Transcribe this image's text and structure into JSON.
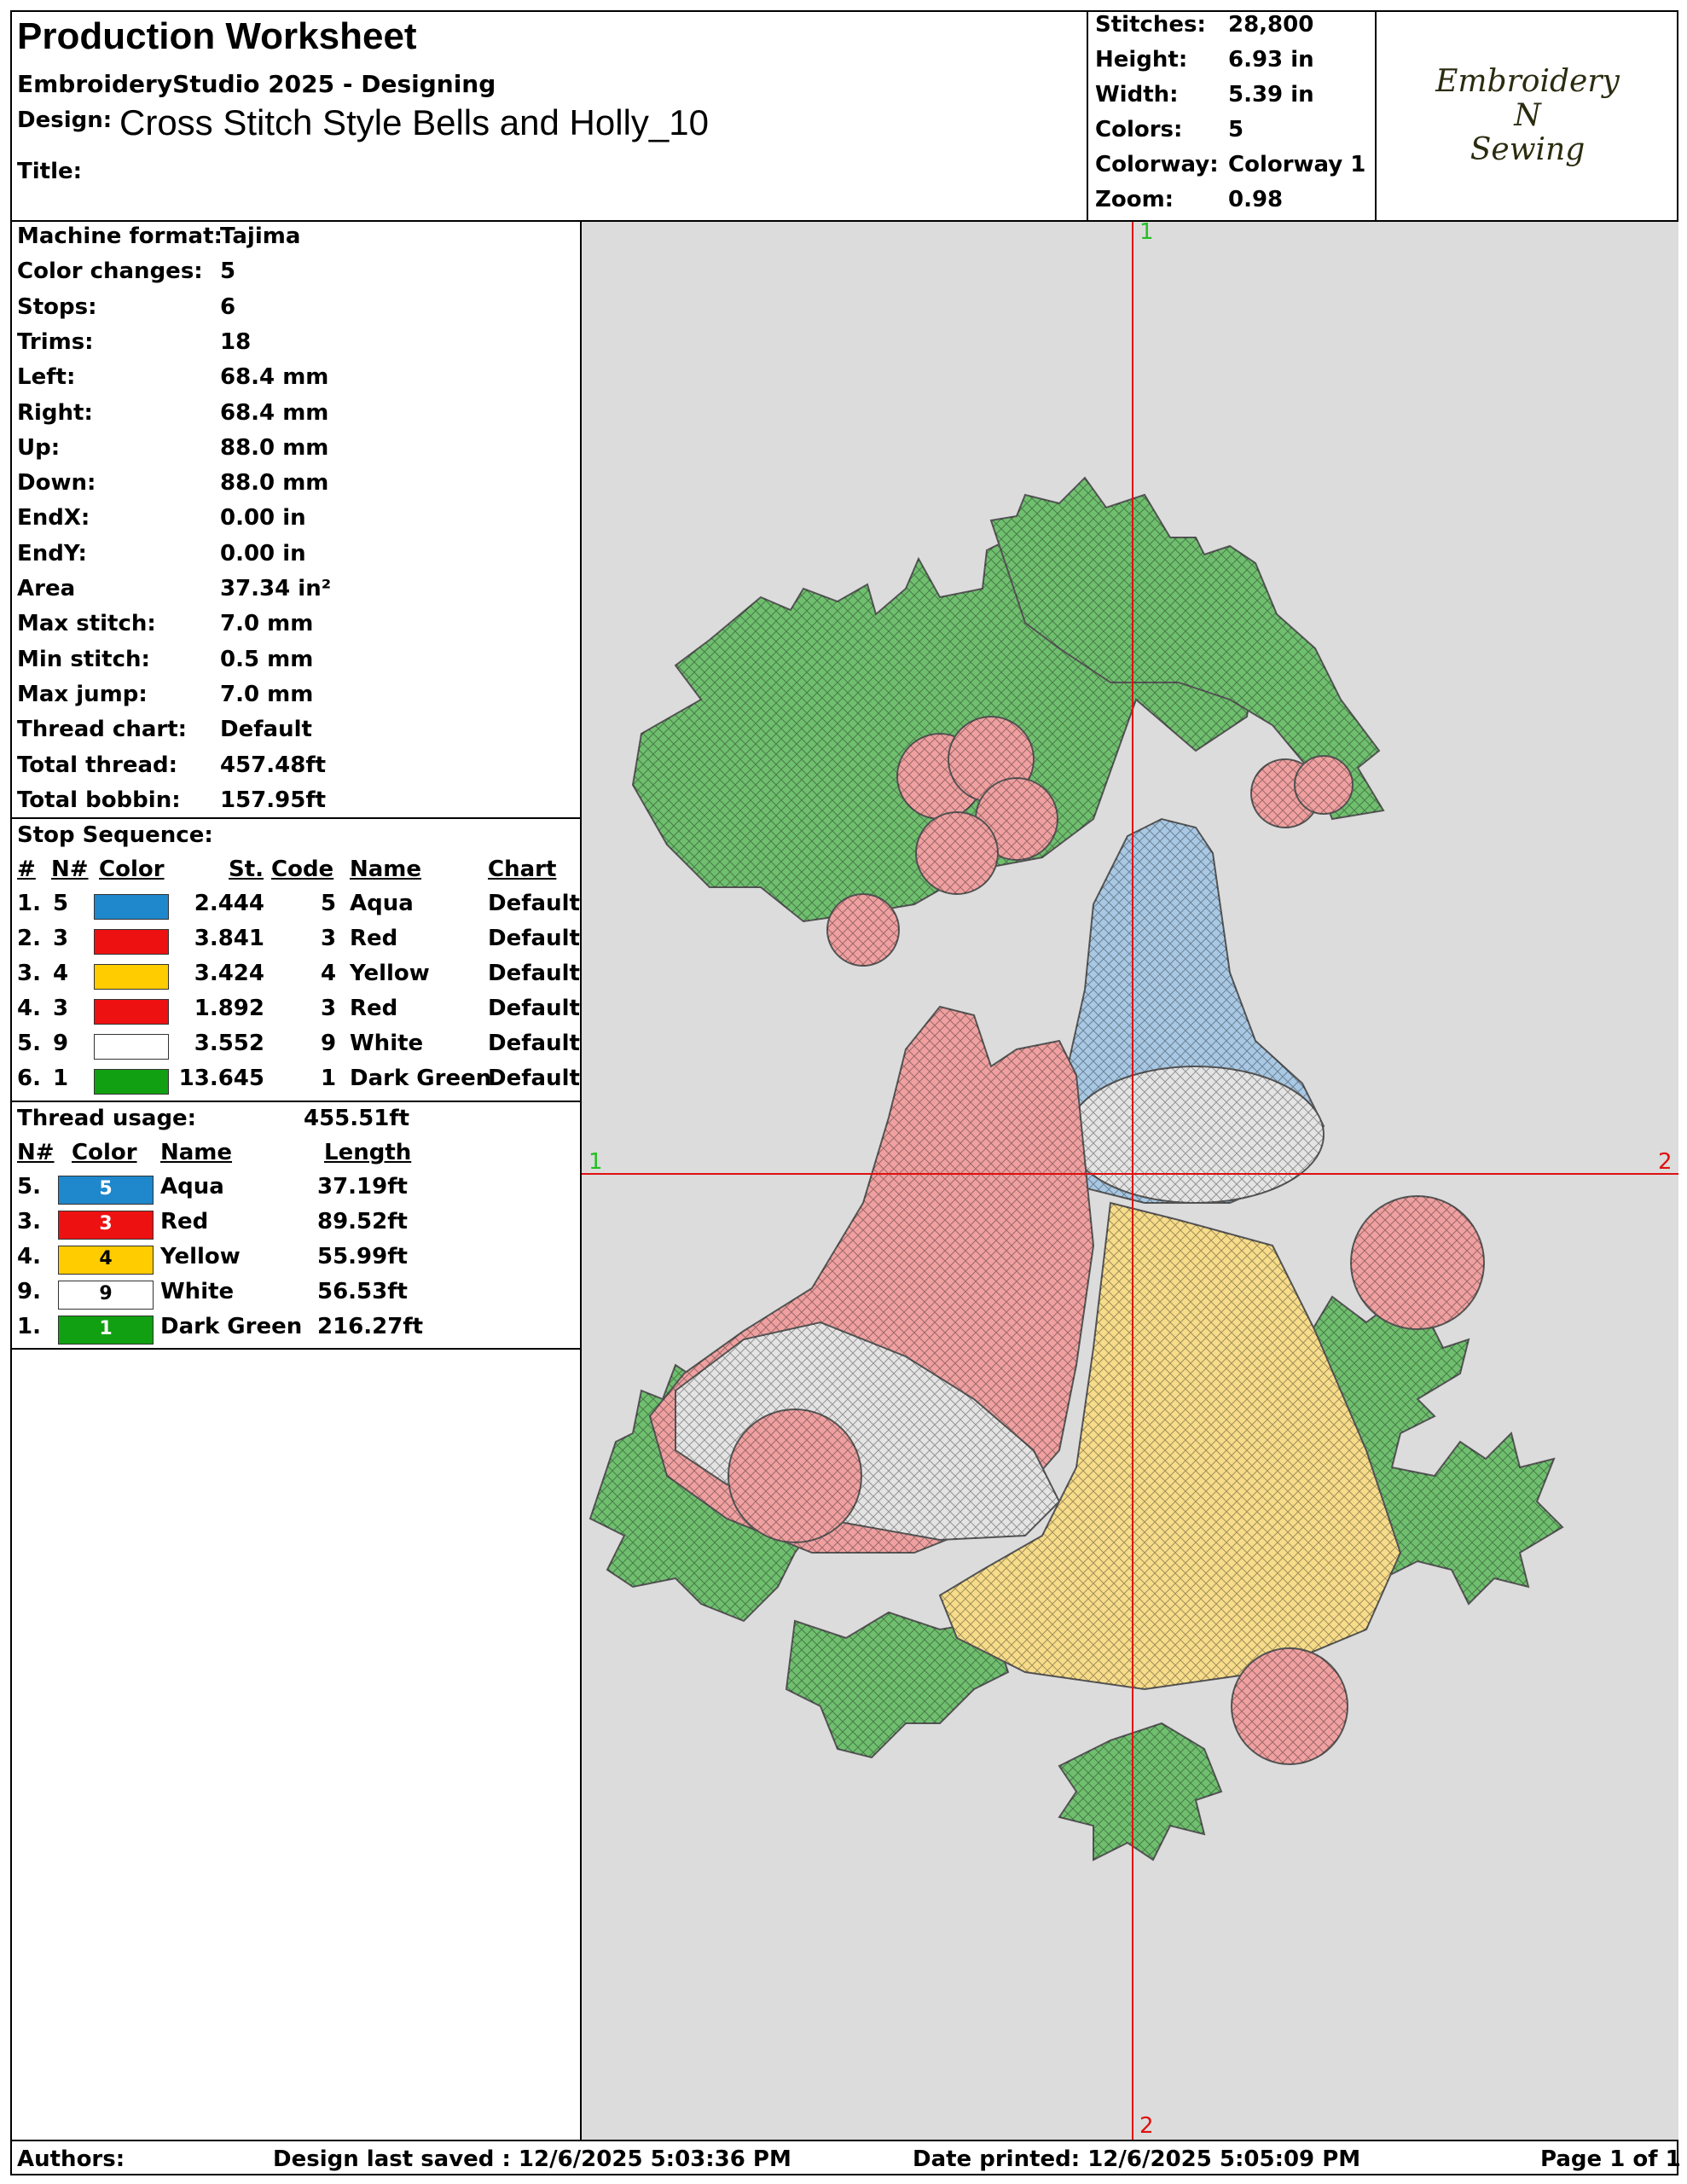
{
  "header": {
    "title": "Production Worksheet",
    "software": "EmbroideryStudio 2025 - Designing",
    "design_label": "Design:",
    "design_name": "Cross Stitch Style Bells and Holly_10",
    "title_label": "Title:",
    "stats": [
      {
        "label": "Stitches:",
        "value": "28,800"
      },
      {
        "label": "Height:",
        "value": "6.93 in"
      },
      {
        "label": "Width:",
        "value": "5.39 in"
      },
      {
        "label": "Colors:",
        "value": "5"
      },
      {
        "label": "Colorway:",
        "value": "Colorway 1"
      },
      {
        "label": "Zoom:",
        "value": "0.98"
      }
    ],
    "logo_lines": [
      "Embroidery",
      "N",
      "Sewing"
    ]
  },
  "machine_info": [
    {
      "label": "Machine format:",
      "value": "Tajima"
    },
    {
      "label": "Color changes:",
      "value": "5"
    },
    {
      "label": "Stops:",
      "value": "6"
    },
    {
      "label": "Trims:",
      "value": "18"
    },
    {
      "label": "Left:",
      "value": "68.4 mm"
    },
    {
      "label": "Right:",
      "value": "68.4 mm"
    },
    {
      "label": "Up:",
      "value": "88.0 mm"
    },
    {
      "label": "Down:",
      "value": "88.0 mm"
    },
    {
      "label": "EndX:",
      "value": "0.00 in"
    },
    {
      "label": "EndY:",
      "value": "0.00 in"
    },
    {
      "label": "Area",
      "value": " 37.34 in²"
    },
    {
      "label": "Max stitch:",
      "value": "7.0 mm"
    },
    {
      "label": "Min stitch:",
      "value": "0.5 mm"
    },
    {
      "label": "Max jump:",
      "value": "7.0 mm"
    },
    {
      "label": "Thread chart:",
      "value": "Default"
    },
    {
      "label": "Total thread:",
      "value": "457.48ft"
    },
    {
      "label": "Total bobbin:",
      "value": "157.95ft"
    }
  ],
  "stop_sequence": {
    "title": "Stop Sequence:",
    "headers": {
      "idx": "#",
      "n": "N#",
      "color": "Color",
      "st": "St.",
      "code": "Code",
      "name": "Name",
      "chart": "Chart"
    },
    "rows": [
      {
        "idx": "1.",
        "n": "5",
        "hex": "#1f87cc",
        "st": "2.444",
        "code": "5",
        "name": "Aqua",
        "chart": "Default"
      },
      {
        "idx": "2.",
        "n": "3",
        "hex": "#ee1111",
        "st": "3.841",
        "code": "3",
        "name": "Red",
        "chart": "Default"
      },
      {
        "idx": "3.",
        "n": "4",
        "hex": "#ffcc00",
        "st": "3.424",
        "code": "4",
        "name": "Yellow",
        "chart": "Default"
      },
      {
        "idx": "4.",
        "n": "3",
        "hex": "#ee1111",
        "st": "1.892",
        "code": "3",
        "name": "Red",
        "chart": "Default"
      },
      {
        "idx": "5.",
        "n": "9",
        "hex": "#ffffff",
        "st": "3.552",
        "code": "9",
        "name": "White",
        "chart": "Default"
      },
      {
        "idx": "6.",
        "n": "1",
        "hex": "#11a011",
        "st": "13.645",
        "code": "1",
        "name": "Dark Green",
        "chart": "Default"
      }
    ]
  },
  "thread_usage": {
    "title": "Thread usage:",
    "total": "455.51ft",
    "headers": {
      "n": "N#",
      "color": "Color",
      "name": "Name",
      "length": "Length"
    },
    "rows": [
      {
        "n": "5.",
        "hex": "#1f87cc",
        "code": "5",
        "text": "#ffffff",
        "name": "Aqua",
        "length": "37.19ft"
      },
      {
        "n": "3.",
        "hex": "#ee1111",
        "code": "3",
        "text": "#ffffff",
        "name": "Red",
        "length": "89.52ft"
      },
      {
        "n": "4.",
        "hex": "#ffcc00",
        "code": "4",
        "text": "#000000",
        "name": "Yellow",
        "length": "55.99ft"
      },
      {
        "n": "9.",
        "hex": "#ffffff",
        "code": "9",
        "text": "#000000",
        "name": "White",
        "length": "56.53ft"
      },
      {
        "n": "1.",
        "hex": "#11a011",
        "code": "1",
        "text": "#ffffff",
        "name": "Dark Green",
        "length": "216.27ft"
      }
    ]
  },
  "canvas": {
    "axis_labels": {
      "top": "1",
      "left": "1",
      "right": "2",
      "bottom": "2"
    },
    "axis_color": "#e01010",
    "fill_colors": {
      "green": "#6fbf6f",
      "red": "#f0a0a0",
      "aqua": "#a8c8e4",
      "yellow": "#f7dc8a",
      "white": "#e4e4e4"
    }
  },
  "footer": {
    "authors": "Authors:",
    "saved": "Design last saved : 12/6/2025 5:03:36 PM",
    "printed": "Date printed: 12/6/2025 5:05:09 PM",
    "page": "Page 1 of 1"
  }
}
